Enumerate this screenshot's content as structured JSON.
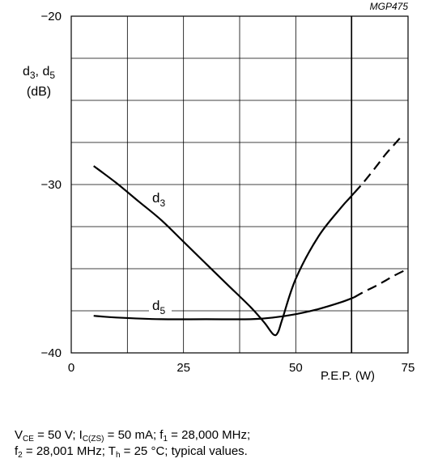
{
  "figure_id": "MGP475",
  "chart_data": {
    "type": "line",
    "ylabel_line1": "d3, d5",
    "ylabel_line2": "(dB)",
    "xlabel": "P.E.P. (W)",
    "xlim": [
      0,
      75
    ],
    "ylim": [
      -40,
      -20
    ],
    "x_ticks": [
      "0",
      "25",
      "50",
      "75"
    ],
    "y_ticks": [
      "−20",
      "−30",
      "−40"
    ],
    "grid": true,
    "series": [
      {
        "name": "d3",
        "x": [
          5,
          10,
          15,
          20,
          25,
          30,
          35,
          40,
          43,
          45,
          46,
          47,
          50,
          55,
          60,
          62,
          65,
          68,
          70,
          72,
          74
        ],
        "y": [
          -28.9,
          -29.9,
          -31.0,
          -32.1,
          -33.4,
          -34.7,
          -36.0,
          -37.3,
          -38.2,
          -38.9,
          -38.8,
          -38.0,
          -35.6,
          -33.1,
          -31.4,
          -30.8,
          -29.9,
          -28.9,
          -28.2,
          -27.6,
          -27.0
        ],
        "dashed_from_x": 63
      },
      {
        "name": "d5",
        "x": [
          5,
          10,
          20,
          30,
          40,
          45,
          50,
          55,
          60,
          63,
          65,
          68,
          70,
          72,
          75
        ],
        "y": [
          -37.8,
          -37.9,
          -38.0,
          -38.0,
          -38.0,
          -37.9,
          -37.7,
          -37.4,
          -37.0,
          -36.7,
          -36.4,
          -36.0,
          -35.7,
          -35.4,
          -35.0
        ],
        "dashed_from_x": 63
      }
    ]
  },
  "caption": {
    "vce": "V",
    "vce_sub": "CE",
    "vce_val": " = 50 V; I",
    "ic_sub": "C(ZS)",
    "ic_val": " = 50 mA; f",
    "f1_sub": "1",
    "f1_val": " = 28,000 MHz;",
    "f2": "f",
    "f2_sub": "2",
    "f2_val": " = 28,001 MHz; T",
    "th_sub": "h",
    "th_val": " = 25 °C; typical values."
  }
}
